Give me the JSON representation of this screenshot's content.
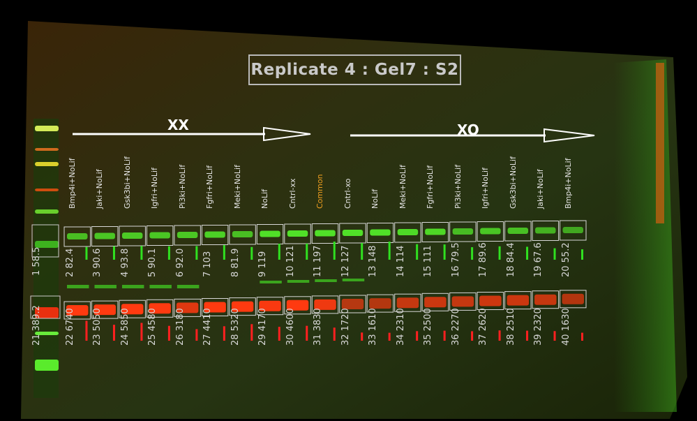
{
  "title": "Replicate 4 : Gel7 : S2",
  "groups": {
    "xx": "XX",
    "xo": "XO"
  },
  "lanes": [
    {
      "name": "Bmp4i+NoLif",
      "gnum": "2",
      "gval": "82.4",
      "rnum": "22",
      "rval": "6740"
    },
    {
      "name": "Jaki+NoLif",
      "gnum": "3",
      "gval": "90.6",
      "rnum": "23",
      "rval": "5050"
    },
    {
      "name": "Gsk3bi+NoLif",
      "gnum": "4",
      "gval": "93.8",
      "rnum": "24",
      "rval": "5850"
    },
    {
      "name": "Igfri+NoLif",
      "gnum": "5",
      "gval": "90.1",
      "rnum": "25",
      "rval": "4580"
    },
    {
      "name": "Pi3ki+NoLif",
      "gnum": "6",
      "gval": "92.0",
      "rnum": "26",
      "rval": "3180"
    },
    {
      "name": "Fgfri+NoLif",
      "gnum": "7",
      "gval": "103",
      "rnum": "27",
      "rval": "4410"
    },
    {
      "name": "Meki+NoLif",
      "gnum": "8",
      "gval": "81.9",
      "rnum": "28",
      "rval": "5320"
    },
    {
      "name": "NoLif",
      "gnum": "9",
      "gval": "119",
      "rnum": "29",
      "rval": "4170"
    },
    {
      "name": "Cntrl-xx",
      "gnum": "10",
      "gval": "121",
      "rnum": "30",
      "rval": "4600"
    },
    {
      "name": "Common",
      "gnum": "11",
      "gval": "197",
      "rnum": "31",
      "rval": "3830"
    },
    {
      "name": "Cntrl-xo",
      "gnum": "12",
      "gval": "127",
      "rnum": "32",
      "rval": "1720"
    },
    {
      "name": "NoLif",
      "gnum": "13",
      "gval": "148",
      "rnum": "33",
      "rval": "1610"
    },
    {
      "name": "Meki+NoLif",
      "gnum": "14",
      "gval": "114",
      "rnum": "34",
      "rval": "2310"
    },
    {
      "name": "Fgfri+NoLif",
      "gnum": "15",
      "gval": "111",
      "rnum": "35",
      "rval": "2500"
    },
    {
      "name": "Pi3ki+NoLif",
      "gnum": "16",
      "gval": "79.5",
      "rnum": "36",
      "rval": "2270"
    },
    {
      "name": "Igfri+NoLif",
      "gnum": "17",
      "gval": "89.6",
      "rnum": "37",
      "rval": "2620"
    },
    {
      "name": "Gsk3bi+NoLif",
      "gnum": "18",
      "gval": "84.4",
      "rnum": "38",
      "rval": "2510"
    },
    {
      "name": "Jaki+NoLif",
      "gnum": "19",
      "gval": "67.6",
      "rnum": "39",
      "rval": "2320"
    },
    {
      "name": "Bmp4i+NoLif",
      "gnum": "20",
      "gval": "55.2",
      "rnum": "40",
      "rval": "1630"
    }
  ],
  "ladder": {
    "gnum": "1",
    "gval": "58.5",
    "rnum": "21",
    "rval": "389.2"
  }
}
